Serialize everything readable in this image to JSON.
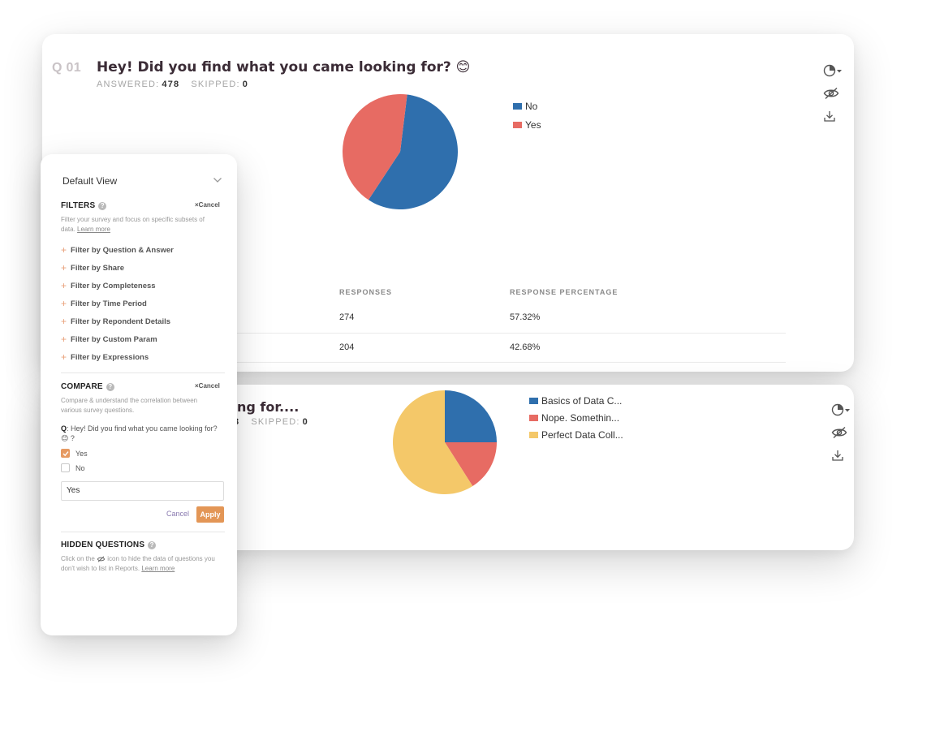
{
  "question1": {
    "number": "Q 01",
    "title": "Hey! Did you find what you came looking for? 😊",
    "answered_label": "ANSWERED:",
    "answered_value": "478",
    "skipped_label": "SKIPPED:",
    "skipped_value": "0",
    "table": {
      "headers": [
        "RESPONSES",
        "RESPONSE PERCENTAGE"
      ],
      "rows": [
        {
          "responses": "274",
          "percentage": "57.32%"
        },
        {
          "responses": "204",
          "percentage": "42.68%"
        }
      ]
    }
  },
  "question2": {
    "title_fragment": "ng for....",
    "answered_fragment": "3",
    "skipped_label": "SKIPPED:",
    "skipped_value": "0"
  },
  "icons": [
    "chart-type-icon",
    "caret-down-icon",
    "hide-eye-icon",
    "download-icon",
    "chevron-down-icon",
    "plus-icon",
    "help-icon",
    "checkmark-icon"
  ],
  "panel": {
    "view_label": "Default View",
    "filters_title": "FILTERS",
    "filters_cancel": "×Cancel",
    "filters_desc": "Filter your survey and focus on specific subsets of data.",
    "filters_learn": "Learn more",
    "filter_items": [
      "Filter by Question & Answer",
      "Filter by Share",
      "Filter by Completeness",
      "Filter by Time Period",
      "Filter by Repondent Details",
      "Filter by Custom Param",
      "Filter by Expressions"
    ],
    "compare_title": "COMPARE",
    "compare_cancel": "×Cancel",
    "compare_desc": "Compare & understand the correlation between various survey questions.",
    "compare_q_label": "Q",
    "compare_q_text": ": Hey! Did you find what you came looking for? 😊 ?",
    "options": [
      {
        "label": "Yes",
        "checked": true
      },
      {
        "label": "No",
        "checked": false
      }
    ],
    "input_value": "Yes",
    "cancel_label": "Cancel",
    "apply_label": "Apply",
    "hidden_title": "HIDDEN QUESTIONS",
    "hidden_desc_1": "Click on the",
    "hidden_desc_2": "icon to hide the data of questions you don't wish to list in Reports.",
    "hidden_learn": "Learn more"
  },
  "chart_data": [
    {
      "type": "pie",
      "categories": [
        "No",
        "Yes"
      ],
      "values": [
        57.32,
        42.68
      ],
      "colors": [
        "#2f6fad",
        "#e76b63"
      ],
      "legend_position": "right"
    },
    {
      "type": "pie",
      "categories": [
        "Basics of Data C...",
        "Nope. Somethin...",
        "Perfect Data Coll..."
      ],
      "values": [
        25,
        16,
        59
      ],
      "colors": [
        "#2f6fad",
        "#e76b63",
        "#f4c869"
      ],
      "legend_position": "right"
    }
  ]
}
